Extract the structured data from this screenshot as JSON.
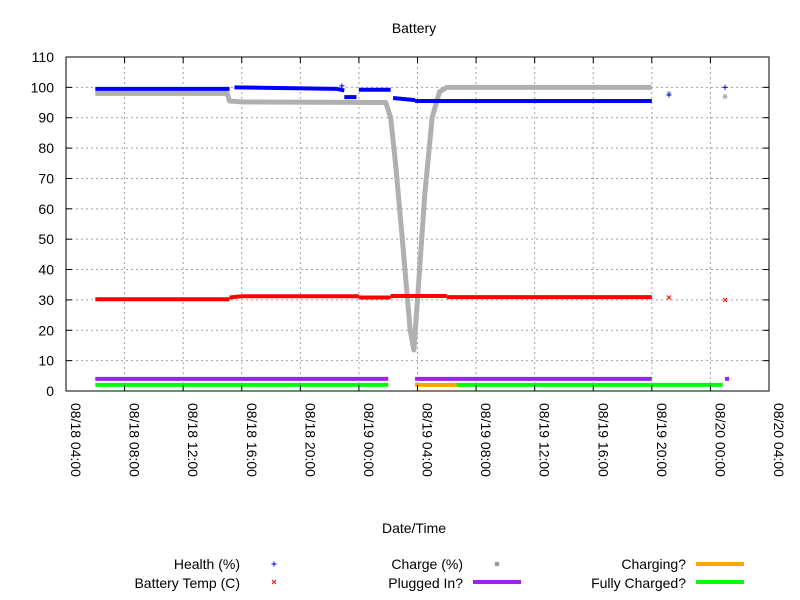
{
  "chart_data": {
    "type": "line",
    "title": "Battery",
    "xlabel": "Date/Time",
    "ylabel": "",
    "ylim": [
      0,
      110
    ],
    "yticks": [
      "0",
      "10",
      "20",
      "30",
      "40",
      "50",
      "60",
      "70",
      "80",
      "90",
      "100",
      "110"
    ],
    "xlim": [
      "08/18 04:00",
      "08/20 04:00"
    ],
    "xticks": [
      "08/18 04:00",
      "08/18 08:00",
      "08/18 12:00",
      "08/18 16:00",
      "08/18 20:00",
      "08/19 00:00",
      "08/19 04:00",
      "08/19 08:00",
      "08/19 12:00",
      "08/19 16:00",
      "08/19 20:00",
      "08/20 00:00",
      "08/20 04:00"
    ],
    "grid": true,
    "legend_position": "bottom",
    "series": [
      {
        "name": "Health (%)",
        "style": "points",
        "marker": "+",
        "color": "#0000ff",
        "segments": [
          [
            [
              "08/18 06:00",
              99.5
            ],
            [
              "08/18 15:10",
              99.5
            ]
          ],
          [
            [
              "08/18 15:30",
              100
            ],
            [
              "08/18 22:30",
              99.5
            ]
          ],
          [
            [
              "08/18 22:30",
              99.5
            ],
            [
              "08/18 23:00",
              99.0
            ]
          ],
          [
            [
              "08/18 23:00",
              96.8
            ],
            [
              "08/18 23:50",
              96.8
            ]
          ],
          [
            [
              "08/19 00:00",
              99.2
            ],
            [
              "08/19 02:10",
              99.2
            ]
          ],
          [
            [
              "08/19 02:20",
              96.5
            ],
            [
              "08/19 03:50",
              95.8
            ]
          ],
          [
            [
              "08/19 03:50",
              95.5
            ],
            [
              "08/19 20:00",
              95.5
            ]
          ]
        ],
        "points": [
          [
            "08/18 22:50",
            100.5
          ],
          [
            "08/19 21:10",
            97.5
          ],
          [
            "08/20 01:00",
            100
          ]
        ]
      },
      {
        "name": "Battery Temp (C)",
        "style": "points",
        "marker": "x",
        "color": "#ff0000",
        "segments": [
          [
            [
              "08/18 06:00",
              30.2
            ],
            [
              "08/18 15:10",
              30.2
            ]
          ],
          [
            [
              "08/18 15:10",
              30.8
            ],
            [
              "08/18 16:00",
              31.2
            ]
          ],
          [
            [
              "08/18 16:00",
              31.2
            ],
            [
              "08/19 00:00",
              31.2
            ]
          ],
          [
            [
              "08/19 00:00",
              30.8
            ],
            [
              "08/19 02:10",
              30.8
            ]
          ],
          [
            [
              "08/19 02:10",
              31.3
            ],
            [
              "08/19 06:00",
              31.3
            ]
          ],
          [
            [
              "08/19 06:00",
              30.9
            ],
            [
              "08/19 20:00",
              30.9
            ]
          ]
        ],
        "points": [
          [
            "08/19 21:10",
            30.8
          ],
          [
            "08/20 01:00",
            30.0
          ]
        ]
      },
      {
        "name": "Charge (%)",
        "style": "points",
        "marker": "*",
        "color": "#b0b0b0",
        "path": [
          [
            "08/18 06:00",
            98
          ],
          [
            "08/18 15:00",
            98
          ],
          [
            "08/18 15:10",
            95.5
          ],
          [
            "08/18 16:00",
            95.2
          ],
          [
            "08/19 01:50",
            95
          ],
          [
            "08/19 02:10",
            90
          ],
          [
            "08/19 02:30",
            75
          ],
          [
            "08/19 03:00",
            48
          ],
          [
            "08/19 03:30",
            20
          ],
          [
            "08/19 03:45",
            13.5
          ],
          [
            "08/19 04:00",
            30
          ],
          [
            "08/19 04:30",
            65
          ],
          [
            "08/19 05:00",
            90
          ],
          [
            "08/19 05:30",
            98.5
          ],
          [
            "08/19 06:00",
            100
          ],
          [
            "08/19 20:00",
            100
          ]
        ],
        "points": [
          [
            "08/19 21:10",
            98
          ],
          [
            "08/20 01:00",
            97
          ]
        ]
      },
      {
        "name": "Plugged In?",
        "style": "bars",
        "color": "#a020f0",
        "level": 4,
        "segments": [
          [
            "08/18 06:00",
            "08/19 02:00"
          ],
          [
            "08/19 03:50",
            "08/19 20:00"
          ],
          [
            "08/20 01:00",
            "08/20 01:10"
          ]
        ]
      },
      {
        "name": "Charging?",
        "style": "bars",
        "color": "#ffa500",
        "level": 2,
        "segments": [
          [
            "08/19 03:50",
            "08/19 06:40"
          ]
        ]
      },
      {
        "name": "Fully Charged?",
        "style": "bars",
        "color": "#00ff00",
        "level": 2,
        "segments": [
          [
            "08/18 06:00",
            "08/19 02:00"
          ],
          [
            "08/19 06:40",
            "08/20 00:50"
          ]
        ]
      }
    ]
  }
}
